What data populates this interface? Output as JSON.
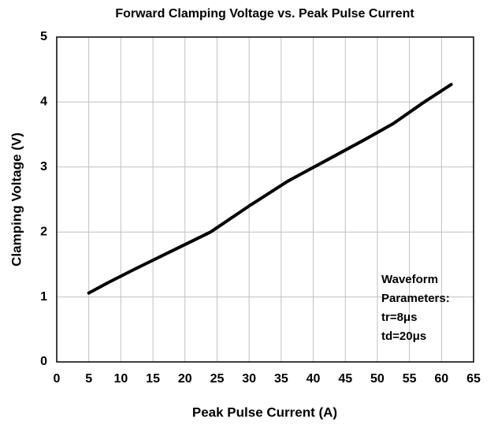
{
  "chart_data": {
    "type": "line",
    "title": "Forward Clamping Voltage vs. Peak Pulse Current",
    "x_label": "Peak Pulse Current (A)",
    "y_label": "Clamping Voltage (V)",
    "x": [
      5,
      8,
      12,
      18,
      24,
      30,
      36,
      42,
      48,
      52.5,
      57,
      61.5
    ],
    "values": [
      1.06,
      1.22,
      1.42,
      1.71,
      2.0,
      2.4,
      2.78,
      3.1,
      3.42,
      3.67,
      3.98,
      4.27
    ],
    "color": "#000000",
    "xlim": [
      0,
      65
    ],
    "xticks": [
      0,
      5,
      10,
      15,
      20,
      25,
      30,
      35,
      40,
      45,
      50,
      55,
      60,
      65
    ],
    "ylim": [
      0,
      5
    ],
    "yticks": [
      0,
      1,
      2,
      3,
      4,
      5
    ],
    "grid": true,
    "annotation": [
      "Waveform",
      "Parameters:",
      "tr=8μs",
      "td=20μs"
    ]
  }
}
